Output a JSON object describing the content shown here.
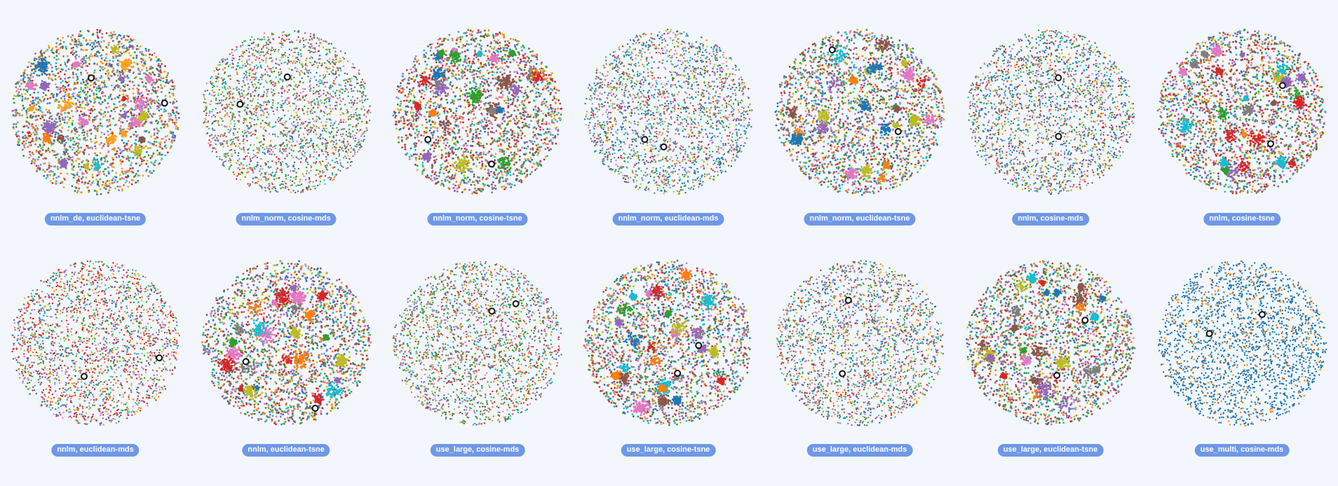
{
  "chart_data": [
    {
      "type": "scatter",
      "title": "nnlm_de, euclidean-tsne",
      "palette": [
        "#ff9f1c",
        "#ff7f0e",
        "#1f77b4",
        "#2ca02c",
        "#d62728",
        "#9467bd",
        "#8c564b",
        "#e377c2",
        "#17becf",
        "#bcbd22",
        "#7f7f7f"
      ],
      "highlighted_points": 2
    },
    {
      "type": "scatter",
      "title": "nnlm_norm, cosine-mds",
      "palette": [
        "#2ca02c",
        "#2ca02c",
        "#1f77b4",
        "#17becf",
        "#7f7f7f",
        "#9467bd",
        "#d62728",
        "#ff7f0e",
        "#8c564b",
        "#e377c2",
        "#bcbd22"
      ],
      "highlighted_points": 2
    },
    {
      "type": "scatter",
      "title": "nnlm_norm, cosine-tsne",
      "palette": [
        "#d62728",
        "#d62728",
        "#ff7f0e",
        "#1f77b4",
        "#2ca02c",
        "#9467bd",
        "#8c564b",
        "#e377c2",
        "#17becf",
        "#bcbd22",
        "#7f7f7f"
      ],
      "highlighted_points": 2
    },
    {
      "type": "scatter",
      "title": "nnlm_norm, euclidean-mds",
      "palette": [
        "#1f77b4",
        "#1f77b4",
        "#1f77b4",
        "#17becf",
        "#2ca02c",
        "#ff7f0e",
        "#d62728",
        "#9467bd",
        "#e377c2",
        "#bcbd22",
        "#7f7f7f"
      ],
      "highlighted_points": 2
    },
    {
      "type": "scatter",
      "title": "nnlm_norm, euclidean-tsne",
      "palette": [
        "#e377c2",
        "#9467bd",
        "#d62728",
        "#1f77b4",
        "#2ca02c",
        "#ff7f0e",
        "#8c564b",
        "#17becf",
        "#bcbd22",
        "#7f7f7f"
      ],
      "highlighted_points": 2
    },
    {
      "type": "scatter",
      "title": "nnlm, cosine-mds",
      "palette": [
        "#1f77b4",
        "#1f77b4",
        "#1f77b4",
        "#17becf",
        "#2ca02c",
        "#d62728",
        "#ff7f0e",
        "#9467bd",
        "#e377c2",
        "#bcbd22",
        "#8c564b"
      ],
      "highlighted_points": 2
    },
    {
      "type": "scatter",
      "title": "nnlm, cosine-tsne",
      "palette": [
        "#d62728",
        "#d62728",
        "#e377c2",
        "#17becf",
        "#2ca02c",
        "#ff7f0e",
        "#1f77b4",
        "#9467bd",
        "#8c564b",
        "#bcbd22",
        "#7f7f7f"
      ],
      "highlighted_points": 2
    },
    {
      "type": "scatter",
      "title": "nnlm, euclidean-mds",
      "palette": [
        "#d62728",
        "#d62728",
        "#d62728",
        "#e377c2",
        "#ff7f0e",
        "#9467bd",
        "#1f77b4",
        "#2ca02c",
        "#17becf",
        "#bcbd22"
      ],
      "highlighted_points": 2
    },
    {
      "type": "scatter",
      "title": "nnlm, euclidean-tsne",
      "palette": [
        "#8c564b",
        "#9467bd",
        "#d62728",
        "#e377c2",
        "#2ca02c",
        "#1f77b4",
        "#ff7f0e",
        "#17becf",
        "#bcbd22",
        "#7f7f7f"
      ],
      "highlighted_points": 2
    },
    {
      "type": "scatter",
      "title": "use_large, cosine-mds",
      "palette": [
        "#2ca02c",
        "#2ca02c",
        "#1f77b4",
        "#17becf",
        "#d62728",
        "#ff7f0e",
        "#9467bd",
        "#e377c2",
        "#bcbd22",
        "#8c564b",
        "#7f7f7f"
      ],
      "highlighted_points": 2
    },
    {
      "type": "scatter",
      "title": "use_large, cosine-tsne",
      "palette": [
        "#2ca02c",
        "#9467bd",
        "#d62728",
        "#ff7f0e",
        "#1f77b4",
        "#e377c2",
        "#8c564b",
        "#17becf",
        "#bcbd22",
        "#7f7f7f"
      ],
      "highlighted_points": 2
    },
    {
      "type": "scatter",
      "title": "use_large, euclidean-mds",
      "palette": [
        "#1f77b4",
        "#1f77b4",
        "#17becf",
        "#2ca02c",
        "#d62728",
        "#ff7f0e",
        "#9467bd",
        "#e377c2",
        "#8c564b",
        "#bcbd22",
        "#7f7f7f"
      ],
      "highlighted_points": 2
    },
    {
      "type": "scatter",
      "title": "use_large, euclidean-tsne",
      "palette": [
        "#d62728",
        "#9467bd",
        "#e377c2",
        "#8c564b",
        "#2ca02c",
        "#1f77b4",
        "#ff7f0e",
        "#17becf",
        "#bcbd22",
        "#7f7f7f"
      ],
      "highlighted_points": 2
    },
    {
      "type": "scatter",
      "title": "use_multi, cosine-mds",
      "palette": [
        "#1f77b4",
        "#1f77b4",
        "#1f77b4",
        "#1f77b4",
        "#1f77b4",
        "#ff7f0e"
      ],
      "highlighted_points": 2
    }
  ]
}
